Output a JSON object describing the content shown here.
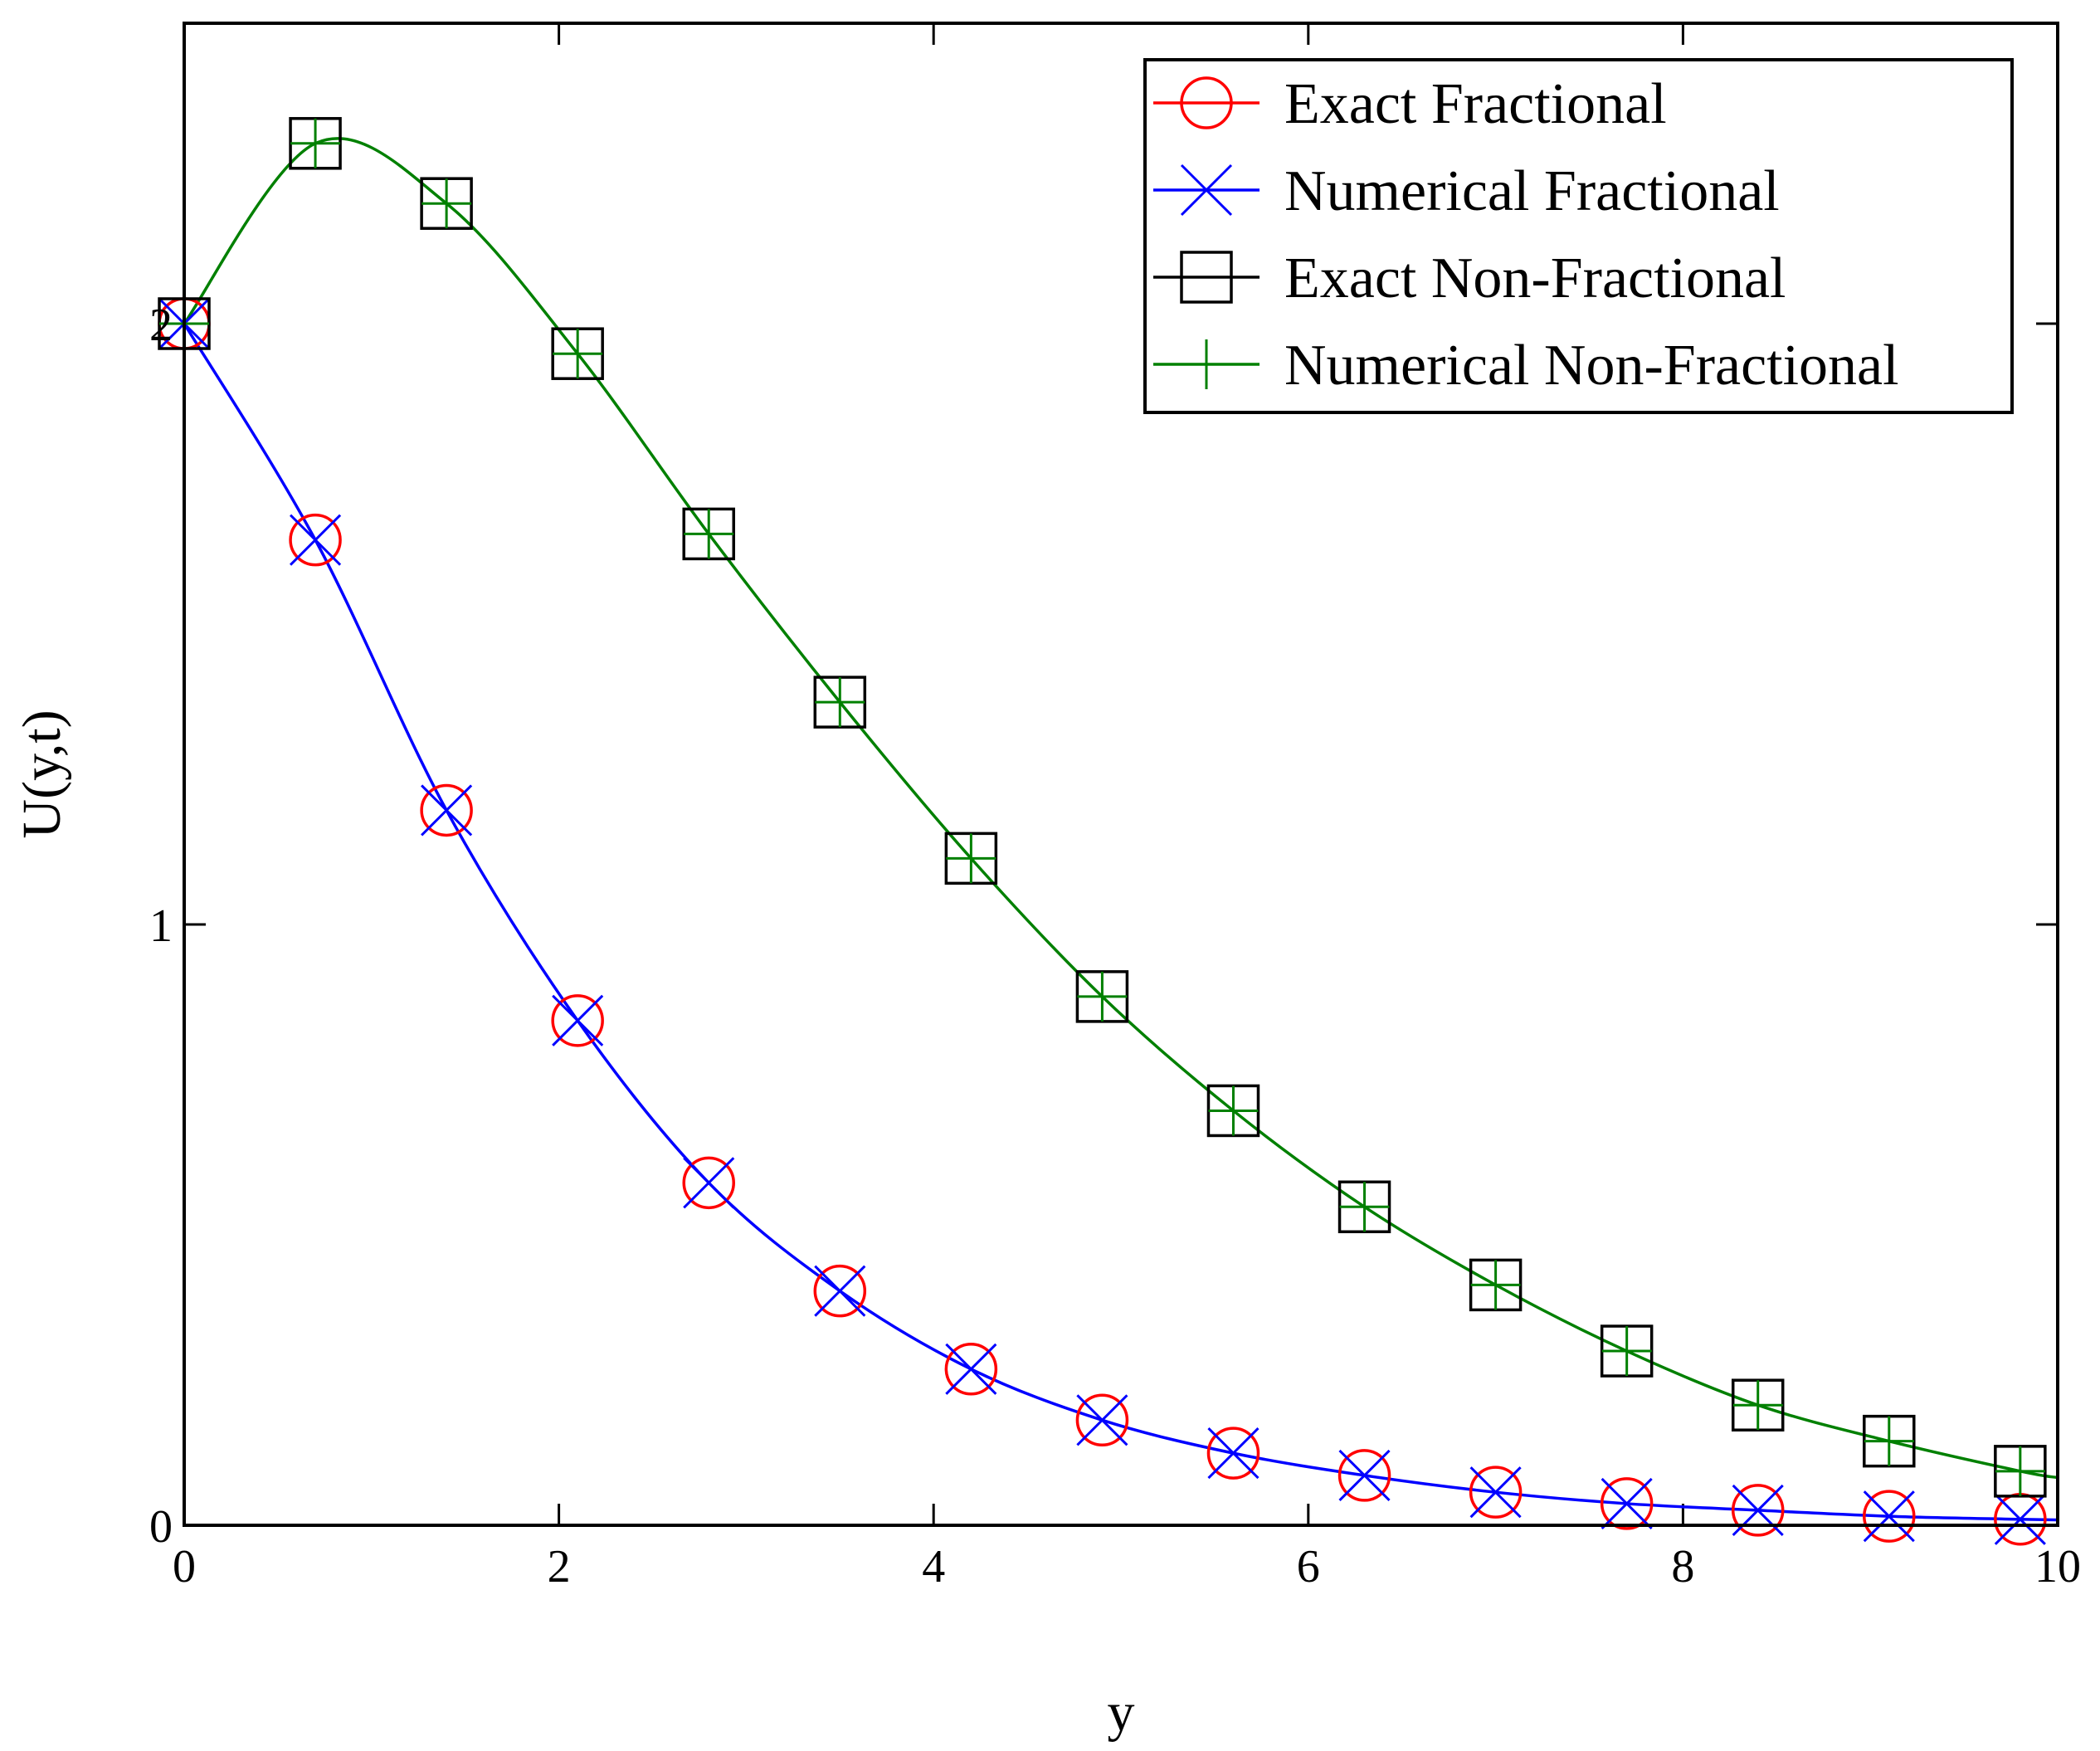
{
  "chart_data": {
    "type": "line",
    "xlabel": "y",
    "ylabel": "U(y,t)",
    "xlim": [
      0,
      10
    ],
    "ylim": [
      0,
      2.5
    ],
    "x_ticks": [
      "0",
      "2",
      "4",
      "6",
      "8",
      "10"
    ],
    "y_ticks": [
      "0",
      "1",
      "2"
    ],
    "x_tick_values": [
      0,
      2,
      4,
      6,
      8,
      10
    ],
    "y_tick_values": [
      0,
      1,
      2
    ],
    "grid": false,
    "legend_position": "top-right",
    "series": [
      {
        "name": "Exact Fractional",
        "color": "#ff0000",
        "marker": "circle",
        "line": false,
        "x": [
          0,
          0.7,
          1.4,
          2.1,
          2.8,
          3.5,
          4.2,
          4.9,
          5.6,
          6.3,
          7.0,
          7.7,
          8.4,
          9.1,
          9.8
        ],
        "y": [
          2.0,
          1.64,
          1.19,
          0.84,
          0.57,
          0.39,
          0.26,
          0.175,
          0.12,
          0.083,
          0.055,
          0.036,
          0.025,
          0.015,
          0.01
        ]
      },
      {
        "name": "Numerical Fractional",
        "color": "#0000ff",
        "marker": "x",
        "line": true,
        "x": [
          0,
          0.7,
          1.4,
          2.1,
          2.8,
          3.5,
          4.2,
          4.9,
          5.6,
          6.3,
          7.0,
          7.7,
          8.4,
          9.1,
          9.8
        ],
        "y": [
          2.0,
          1.64,
          1.19,
          0.84,
          0.57,
          0.39,
          0.26,
          0.175,
          0.12,
          0.083,
          0.055,
          0.036,
          0.025,
          0.015,
          0.01
        ]
      },
      {
        "name": "Exact Non-Fractional",
        "color": "#000000",
        "marker": "square",
        "line": false,
        "x": [
          0,
          0.7,
          1.4,
          2.1,
          2.8,
          3.5,
          4.2,
          4.9,
          5.6,
          6.3,
          7.0,
          7.7,
          8.4,
          9.1,
          9.8
        ],
        "y": [
          2.0,
          2.3,
          2.2,
          1.95,
          1.65,
          1.37,
          1.11,
          0.88,
          0.69,
          0.53,
          0.4,
          0.29,
          0.2,
          0.14,
          0.09
        ]
      },
      {
        "name": "Numerical Non-Fractional",
        "color": "#008000",
        "marker": "plus",
        "line": true,
        "x": [
          0,
          0.7,
          1.4,
          2.1,
          2.8,
          3.5,
          4.2,
          4.9,
          5.6,
          6.3,
          7.0,
          7.7,
          8.4,
          9.1,
          9.8
        ],
        "y": [
          2.0,
          2.3,
          2.2,
          1.95,
          1.65,
          1.37,
          1.11,
          0.88,
          0.69,
          0.53,
          0.4,
          0.29,
          0.2,
          0.14,
          0.09
        ]
      }
    ]
  }
}
